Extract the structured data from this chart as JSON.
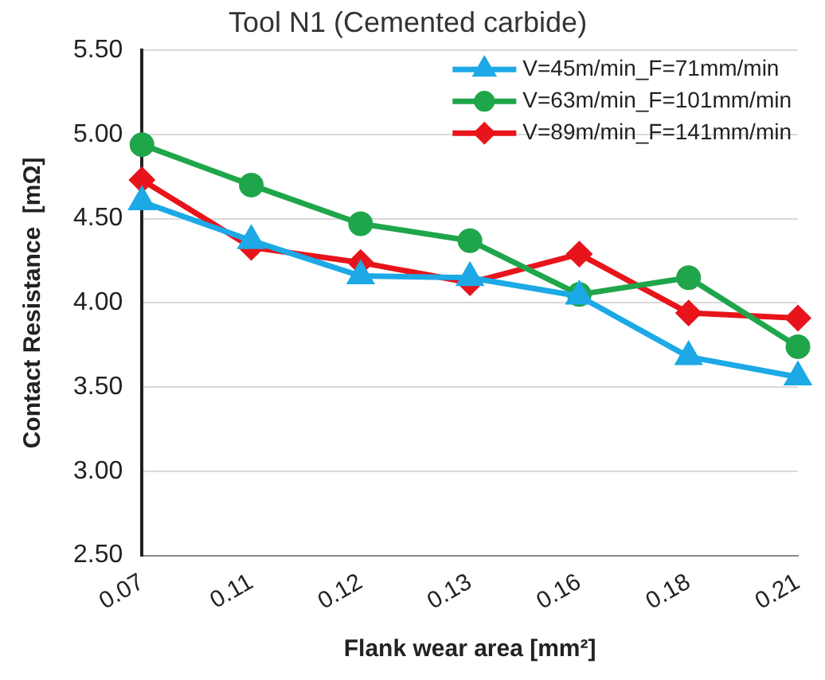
{
  "chart_data": {
    "type": "line",
    "title": "Tool N1 (Cemented carbide)",
    "xlabel": "Flank wear area [mm²]",
    "ylabel": "Contact Resistance  [mΩ]",
    "categories": [
      "0.07",
      "0.11",
      "0.12",
      "0.13",
      "0.16",
      "0.18",
      "0.21"
    ],
    "series": [
      {
        "name": "V=45m/min_F=71mm/min",
        "color": "#1ca9e6",
        "marker": "triangle",
        "values": [
          4.6,
          4.37,
          4.16,
          4.15,
          4.04,
          3.68,
          3.56
        ]
      },
      {
        "name": "V=63m/min_F=101mm/min",
        "color": "#1fa64a",
        "marker": "circle",
        "values": [
          4.94,
          4.7,
          4.47,
          4.37,
          4.05,
          4.15,
          3.74
        ]
      },
      {
        "name": "V=89m/min_F=141mm/min",
        "color": "#e8141b",
        "marker": "diamond",
        "values": [
          4.73,
          4.33,
          4.24,
          4.12,
          4.29,
          3.94,
          3.91
        ]
      }
    ],
    "ylim": [
      2.5,
      5.5
    ],
    "yticks": [
      {
        "value": 2.5,
        "label": "2.50"
      },
      {
        "value": 3,
        "label": "3.00"
      },
      {
        "value": 3.5,
        "label": "3.50"
      },
      {
        "value": 4,
        "label": "4.00"
      },
      {
        "value": 4.5,
        "label": "4.50"
      },
      {
        "value": 5,
        "label": "5.00"
      },
      {
        "value": 5.5,
        "label": "5.50"
      }
    ],
    "grid": "y",
    "legend": "top right"
  }
}
